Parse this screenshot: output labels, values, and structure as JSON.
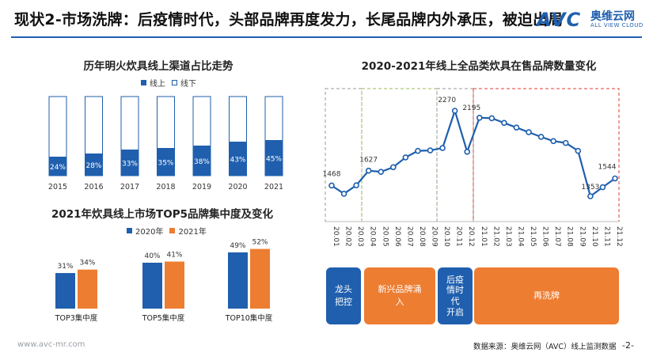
{
  "header": {
    "title": "现状2-市场洗牌：后疫情时代，头部品牌再度发力，长尾品牌内外承压，被迫出局",
    "logo": {
      "brand": "AVC",
      "name_cn": "奥维云网",
      "name_en": "ALL VIEW CLOUD"
    }
  },
  "footer": {
    "url": "www.avc-mr.com",
    "source": "数据来源：奥维云网（AVC）线上监测数据",
    "page": "-2-"
  },
  "colors": {
    "online": "#1f5fae",
    "offline": "#ffffff",
    "y2020": "#1f5fae",
    "y2021": "#ed7d31",
    "phase_blue": "#1f5fae",
    "phase_orange": "#ed7d31",
    "line": "#1f5fae"
  },
  "chart_data": [
    {
      "id": "online-share",
      "type": "bar",
      "stacked": true,
      "title": "历年明火炊具线上渠道占比走势",
      "categories": [
        "2015",
        "2016",
        "2017",
        "2018",
        "2019",
        "2020",
        "2021"
      ],
      "series": [
        {
          "name": "线上",
          "values": [
            24,
            28,
            33,
            35,
            38,
            43,
            45
          ]
        },
        {
          "name": "线下",
          "values": [
            76,
            72,
            67,
            65,
            62,
            57,
            55
          ]
        }
      ],
      "value_labels": [
        "24%",
        "28%",
        "33%",
        "35%",
        "38%",
        "43%",
        "45%"
      ],
      "ylim": [
        0,
        100
      ],
      "legend": "top-right"
    },
    {
      "id": "brand-count",
      "type": "line",
      "title": "2020-2021年线上全品类炊具在售品牌数量变化",
      "x": [
        "20.01",
        "20.02",
        "20.03",
        "20.04",
        "20.05",
        "20.06",
        "20.07",
        "20.08",
        "20.09",
        "20.10",
        "20.11",
        "20.12",
        "21.01",
        "21.02",
        "21.03",
        "21.04",
        "21.05",
        "21.06",
        "21.07",
        "21.08",
        "21.09",
        "21.10",
        "21.11",
        "21.12"
      ],
      "values": [
        1468,
        1380,
        1470,
        1627,
        1615,
        1665,
        1770,
        1840,
        1845,
        1870,
        2270,
        1830,
        2195,
        2190,
        2140,
        2090,
        2040,
        1990,
        1945,
        1925,
        1840,
        1353,
        1450,
        1544
      ],
      "labeled_points": [
        {
          "x": "20.01",
          "label": "1468"
        },
        {
          "x": "20.04",
          "label": "1627"
        },
        {
          "x": "20.11",
          "label": "2270"
        },
        {
          "x": "21.01",
          "label": "2195"
        },
        {
          "x": "21.10",
          "label": "1353"
        },
        {
          "x": "21.12",
          "label": "1544"
        }
      ],
      "phases": [
        {
          "label": "龙头\n把控",
          "range": [
            "20.01",
            "20.03"
          ],
          "color": "#1f5fae"
        },
        {
          "label": "新兴品牌涌\n入",
          "range": [
            "20.04",
            "20.09"
          ],
          "color": "#ed7d31"
        },
        {
          "label": "后疫\n情时\n代\n开启",
          "range": [
            "20.10",
            "20.12"
          ],
          "color": "#1f5fae"
        },
        {
          "label": "再洗牌",
          "range": [
            "21.01",
            "21.12"
          ],
          "color": "#ed7d31"
        }
      ]
    },
    {
      "id": "top-concentration",
      "type": "bar",
      "title": "2021年炊具线上市场TOP5品牌集中度及变化",
      "categories": [
        "TOP3集中度",
        "TOP5集中度",
        "TOP10集中度"
      ],
      "series": [
        {
          "name": "2020年",
          "values": [
            31,
            40,
            49
          ]
        },
        {
          "name": "2021年",
          "values": [
            34,
            41,
            52
          ]
        }
      ],
      "value_labels": {
        "2020年": [
          "31%",
          "40%",
          "49%"
        ],
        "2021年": [
          "34%",
          "41%",
          "52%"
        ]
      },
      "legend": "top-left"
    }
  ]
}
